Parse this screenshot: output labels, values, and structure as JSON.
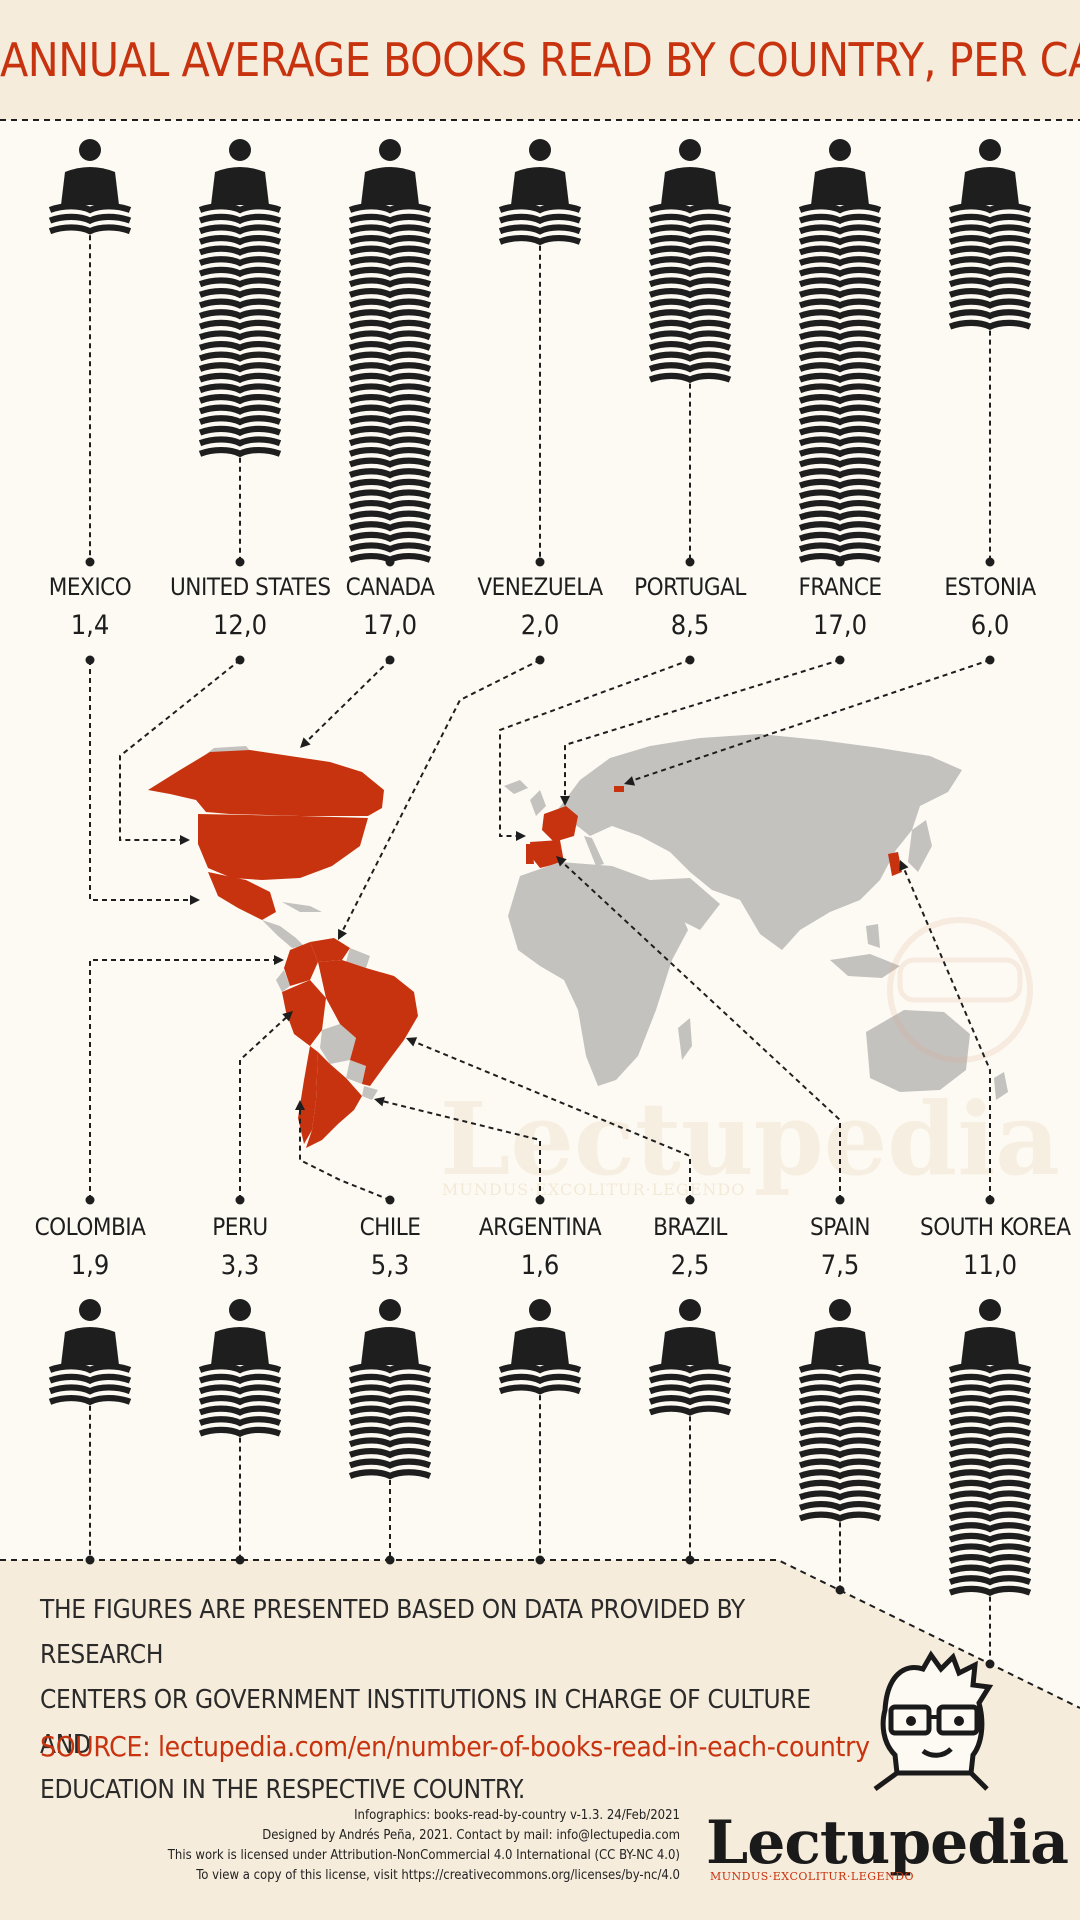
{
  "title": "ANNUAL AVERAGE BOOKS READ BY COUNTRY, PER CAPITA",
  "chart_data": {
    "type": "pictograph",
    "title": "ANNUAL AVERAGE BOOKS READ BY COUNTRY, PER CAPITA",
    "categories": [
      "MEXICO",
      "UNITED STATES",
      "CANADA",
      "VENEZUELA",
      "PORTUGAL",
      "FRANCE",
      "ESTONIA",
      "COLOMBIA",
      "PERU",
      "CHILE",
      "ARGENTINA",
      "BRAZIL",
      "SPAIN",
      "SOUTH KOREA"
    ],
    "values": [
      1.4,
      12.0,
      17.0,
      2.0,
      8.5,
      17.0,
      6.0,
      1.9,
      3.3,
      5.3,
      1.6,
      2.5,
      7.5,
      11.0
    ],
    "value_labels": [
      "1,4",
      "12,0",
      "17,0",
      "2,0",
      "8,5",
      "17,0",
      "6,0",
      "1,9",
      "3,3",
      "5,3",
      "1,6",
      "2,5",
      "7,5",
      "11,0"
    ],
    "rows": [
      {
        "position": "top",
        "countries": [
          "MEXICO",
          "UNITED STATES",
          "CANADA",
          "VENEZUELA",
          "PORTUGAL",
          "FRANCE",
          "ESTONIA"
        ]
      },
      {
        "position": "bottom",
        "countries": [
          "COLOMBIA",
          "PERU",
          "CHILE",
          "ARGENTINA",
          "BRAZIL",
          "SPAIN",
          "SOUTH KOREA"
        ]
      }
    ]
  },
  "notes": [
    "THE FIGURES ARE PRESENTED BASED ON DATA PROVIDED BY RESEARCH",
    "CENTERS OR GOVERNMENT INSTITUTIONS IN CHARGE OF CULTURE AND",
    "EDUCATION IN THE RESPECTIVE COUNTRY."
  ],
  "source": "SOURCE: lectupedia.com/en/number-of-books-read-in-each-country",
  "credits": [
    "Infographics: books-read-by-country v-1.3. 24/Feb/2021",
    "Designed by Andrés Peña, 2021. Contact by mail: info@lectupedia.com",
    "This work is licensed under Attribution-NonCommercial 4.0 International (CC BY-NC 4.0)",
    "To view a copy of this license, visit https://creativecommons.org/licenses/by-nc/4.0"
  ],
  "logo": {
    "word": "Lectupedia",
    "tagline": "MUNDUS·EXCOLITUR·LEGENDO"
  },
  "colors": {
    "accent": "#c8330f",
    "ink": "#1e1e1e",
    "map_gray": "#c4c2bf",
    "background": "#fdfaf3",
    "panel": "#f6ecdc"
  },
  "icons": [
    "reader-icon",
    "book-stack-icon",
    "world-map",
    "mascot-icon"
  ]
}
